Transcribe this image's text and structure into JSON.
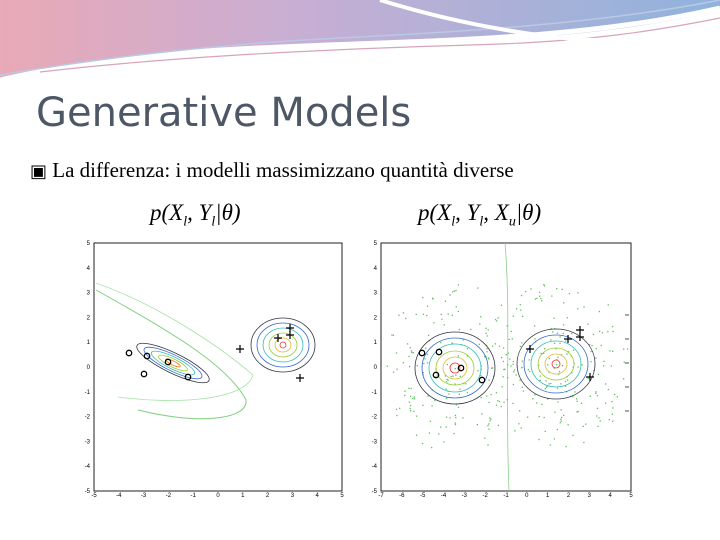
{
  "slide": {
    "title": "Generative Models",
    "bullet_icon": "square-bullet-icon",
    "bullet_text": "La differenza: i modelli massimizzano quantità diverse"
  },
  "formulas": {
    "left": "p(X_l, Y_l | θ)",
    "right": "p(X_l, Y_l, X_u | θ)"
  },
  "colors": {
    "title": "#4d5766",
    "banner_blue": "#8fb3dc",
    "banner_pink": "#e8a6b3"
  },
  "plots": {
    "left": {
      "xticks": [
        "-5",
        "-4",
        "-3",
        "-2",
        "-1",
        "0",
        "1",
        "2",
        "3",
        "4",
        "5"
      ],
      "yticks": [
        "5",
        "4",
        "3",
        "2",
        "1",
        "0",
        "-1",
        "-2",
        "-3",
        "-4",
        "-5"
      ]
    },
    "right": {
      "xticks": [
        "-7",
        "-6",
        "-5",
        "-4",
        "-3",
        "-2",
        "-1",
        "0",
        "1",
        "2",
        "3",
        "4",
        "5"
      ],
      "yticks": [
        "5",
        "4",
        "3",
        "2",
        "1",
        "0",
        "-1",
        "-2",
        "-3",
        "-4",
        "-5"
      ]
    }
  }
}
